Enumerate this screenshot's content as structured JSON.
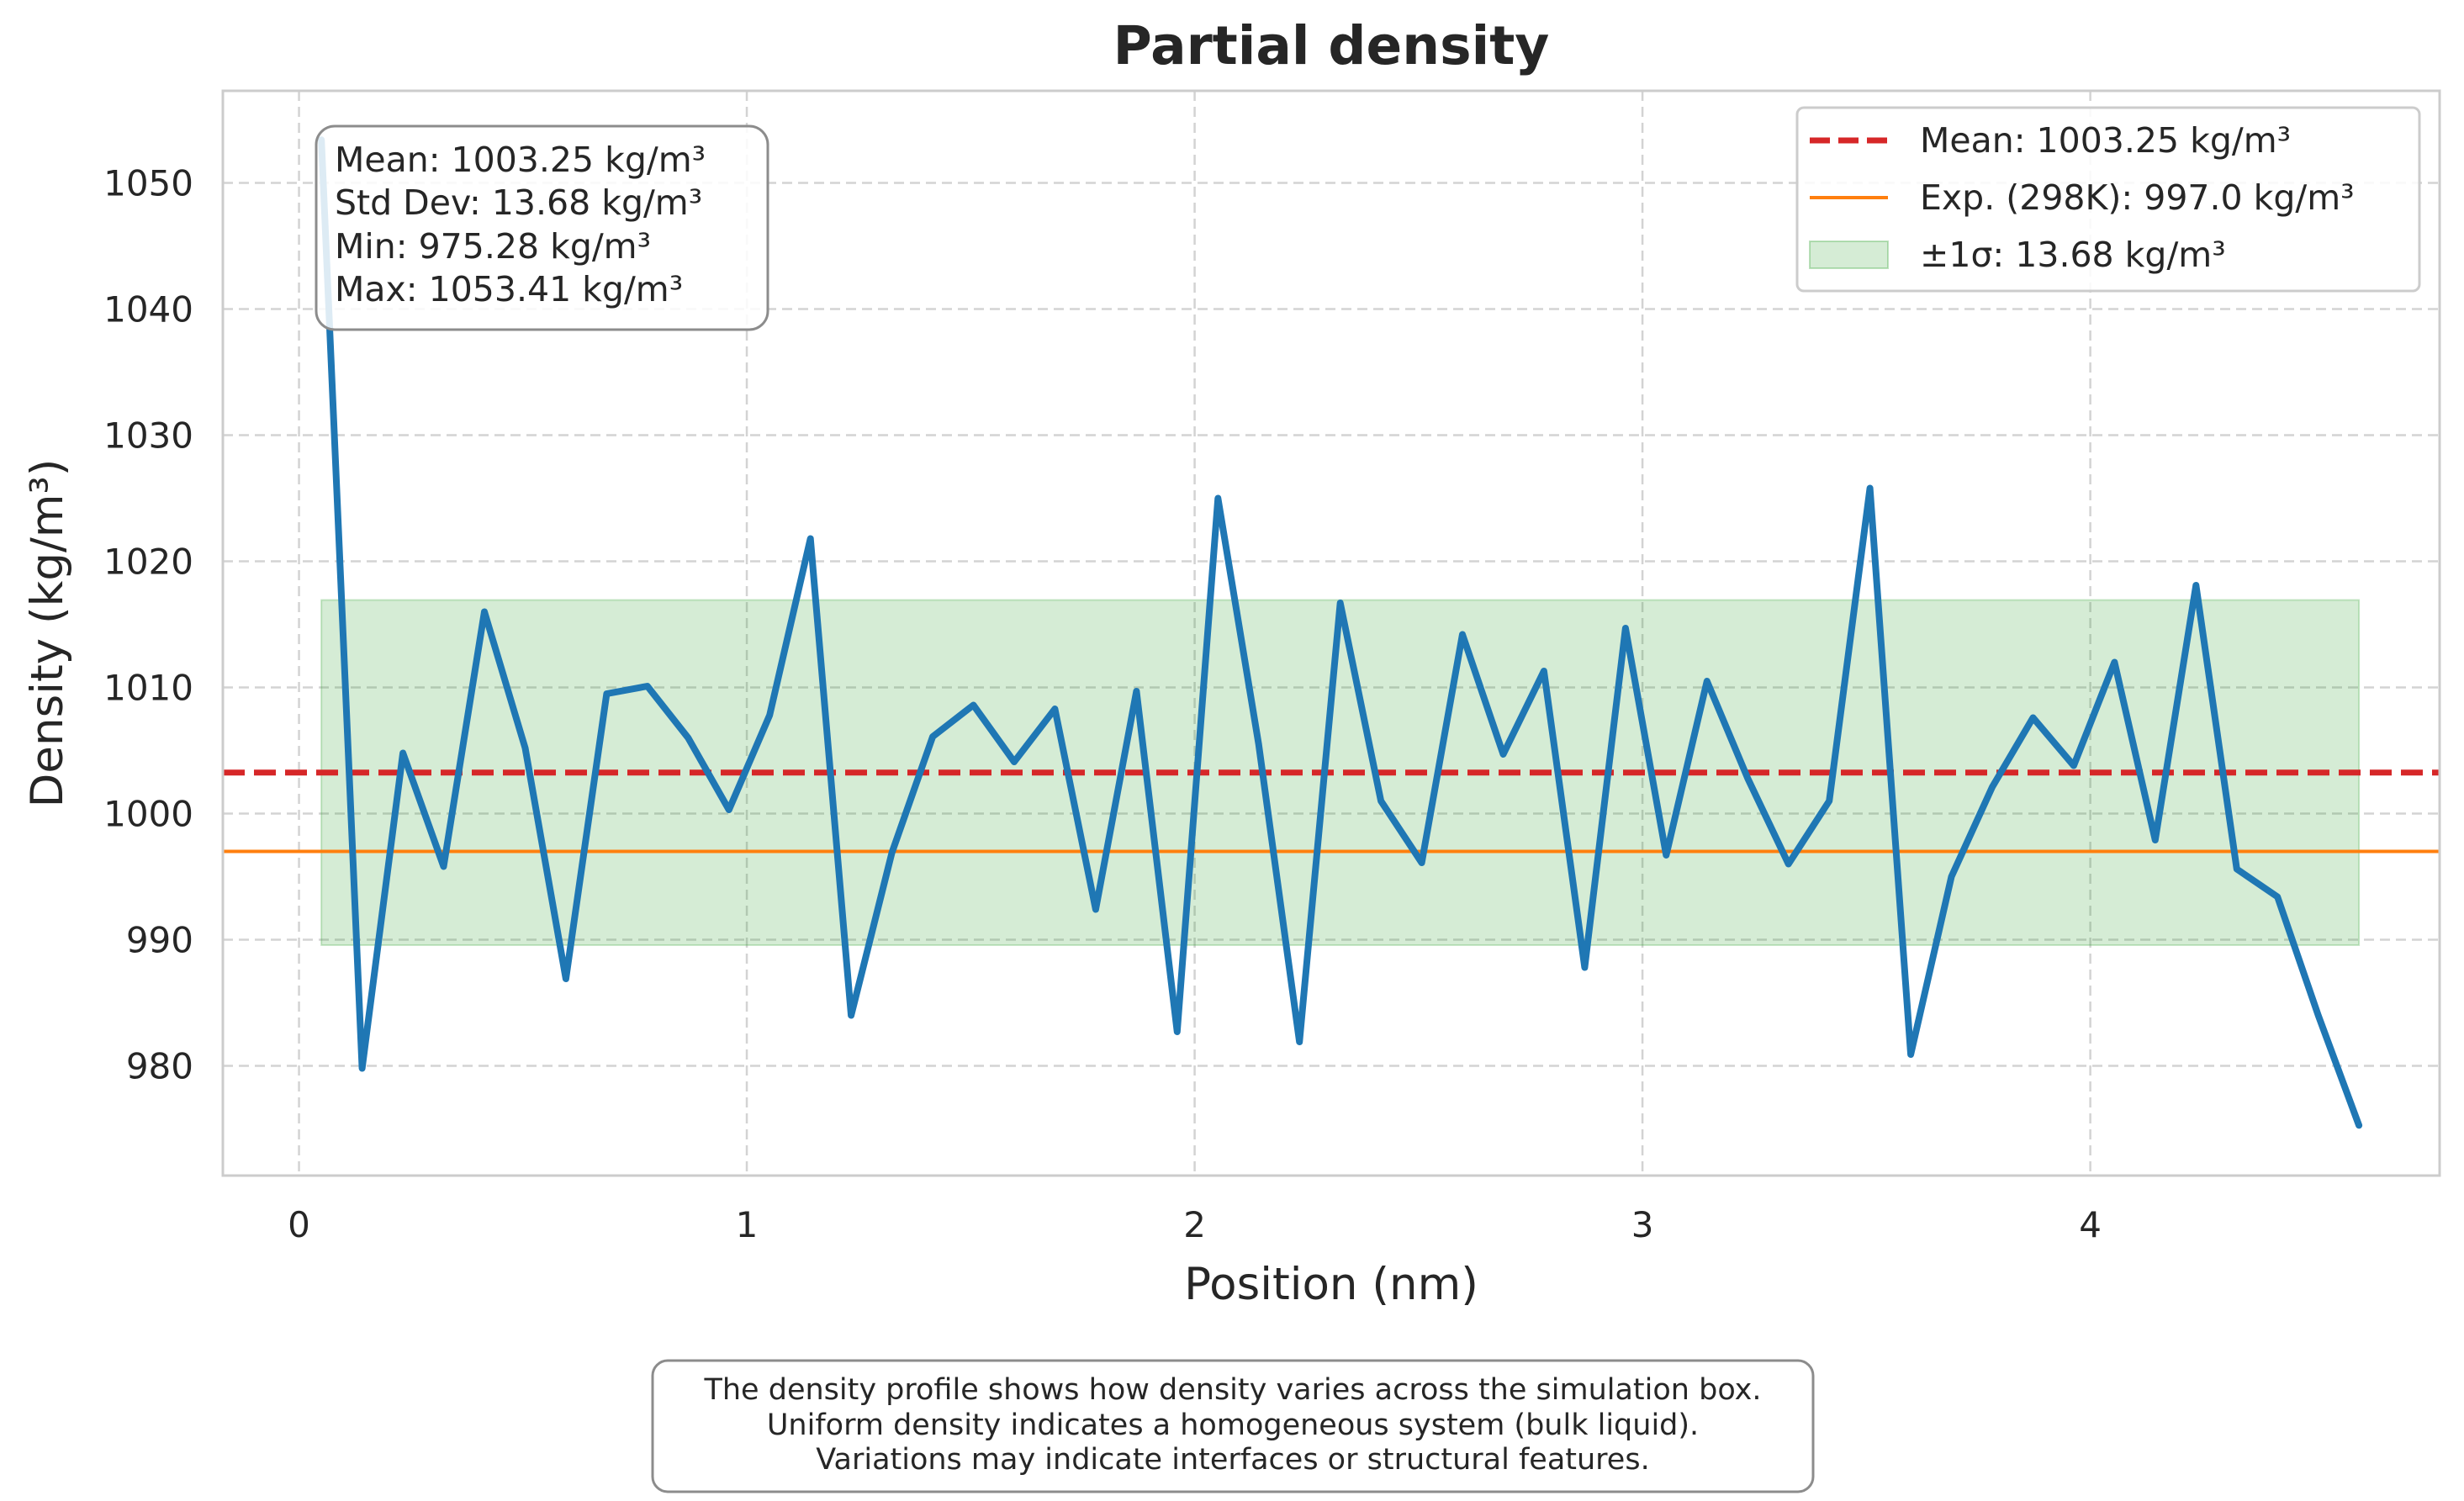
{
  "chart_data": {
    "type": "line",
    "title": "Partial density",
    "xlabel": "Position (nm)",
    "ylabel": "Density (kg/m³)",
    "xlim": [
      -0.17,
      4.78
    ],
    "ylim": [
      971.3,
      1057.3
    ],
    "grid": true,
    "x_ticks": [
      0,
      1,
      2,
      3,
      4
    ],
    "x_tick_labels": [
      "0",
      "1",
      "2",
      "3",
      "4"
    ],
    "y_ticks": [
      980,
      990,
      1000,
      1010,
      1020,
      1030,
      1040,
      1050
    ],
    "y_tick_labels": [
      "980",
      "990",
      "1000",
      "1010",
      "1020",
      "1030",
      "1040",
      "1050"
    ],
    "series": [
      {
        "color": "#1f77b4",
        "x": [
          0.05,
          0.141,
          0.232,
          0.323,
          0.414,
          0.505,
          0.596,
          0.687,
          0.778,
          0.869,
          0.96,
          1.051,
          1.142,
          1.233,
          1.324,
          1.415,
          1.506,
          1.597,
          1.688,
          1.779,
          1.87,
          1.961,
          2.052,
          2.143,
          2.234,
          2.325,
          2.416,
          2.507,
          2.598,
          2.689,
          2.78,
          2.871,
          2.962,
          3.053,
          3.144,
          3.235,
          3.326,
          3.417,
          3.508,
          3.599,
          3.69,
          3.781,
          3.872,
          3.963,
          4.054,
          4.145,
          4.236,
          4.327,
          4.418,
          4.509,
          4.6
        ],
        "y": [
          1053.41,
          979.8,
          1004.8,
          995.8,
          1016.0,
          1005.2,
          986.9,
          1009.5,
          1010.1,
          1006.0,
          1000.3,
          1007.8,
          1021.8,
          984.0,
          996.9,
          1006.1,
          1008.6,
          1004.1,
          1008.3,
          992.4,
          1009.7,
          982.7,
          1025.0,
          1005.5,
          981.9,
          1016.7,
          1001.0,
          996.1,
          1014.2,
          1004.7,
          1011.3,
          987.8,
          1014.7,
          996.7,
          1010.5,
          1002.8,
          996.0,
          1001.0,
          1025.8,
          980.9,
          995.0,
          1002.1,
          1007.6,
          1003.8,
          1012.0,
          997.9,
          1018.1,
          995.6,
          993.4,
          984.0,
          975.28
        ]
      }
    ],
    "mean_line": {
      "y": 1003.25,
      "color": "#d62728",
      "style": "dashed"
    },
    "exp_line": {
      "y": 997.0,
      "color": "#ff7f0e"
    },
    "sigma_band": {
      "y_low": 989.57,
      "y_high": 1016.93,
      "x_start": 0.05,
      "x_end": 4.6,
      "color": "#2ca02c"
    },
    "legend": {
      "position": "top-right",
      "entries": [
        {
          "label": "Mean: 1003.25 kg/m³",
          "kind": "dashed-line",
          "color": "#d62728"
        },
        {
          "label": "Exp. (298K): 997.0 kg/m³",
          "kind": "line",
          "color": "#ff7f0e"
        },
        {
          "label": "±1σ: 13.68 kg/m³",
          "kind": "patch",
          "color": "#2ca02c"
        }
      ]
    },
    "stats_box": {
      "position": "top-left",
      "lines": [
        "Mean: 1003.25 kg/m³",
        "Std Dev: 13.68 kg/m³",
        "Min: 975.28 kg/m³",
        "Max: 1053.41 kg/m³"
      ]
    },
    "caption": [
      "The density profile shows how density varies across the simulation box.",
      "Uniform density indicates a homogeneous system (bulk liquid).",
      "Variations may indicate interfaces or structural features."
    ]
  }
}
